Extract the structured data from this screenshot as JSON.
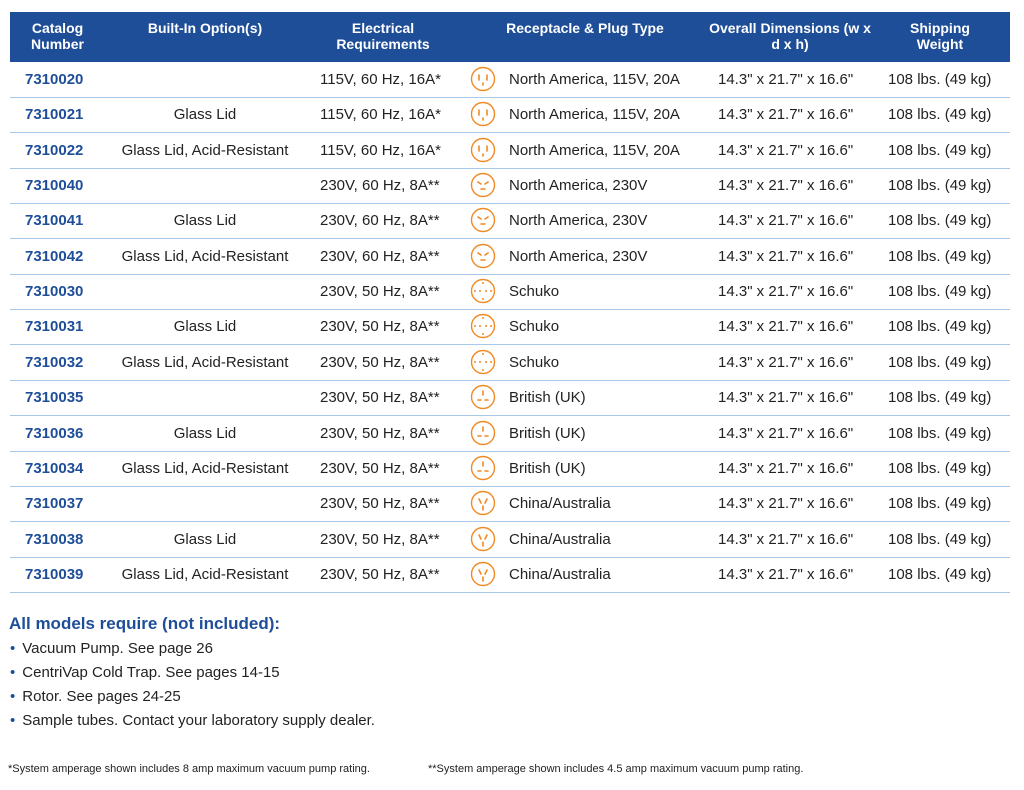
{
  "table": {
    "headers": [
      "Catalog Number",
      "Built-In Option(s)",
      "Electrical Requirements",
      "Receptacle & Plug Type",
      "Overall Dimensions (w x d x h)",
      "Shipping Weight"
    ],
    "rows": [
      [
        "7310020",
        null,
        "115V, 60 Hz, 16A*",
        "North America, 115V, 20A",
        "14.3\" x 21.7\" x 16.6\"",
        "108 lbs. (49 kg)"
      ],
      [
        "7310021",
        "Glass Lid",
        "115V, 60 Hz, 16A*",
        "North America, 115V, 20A",
        "14.3\" x 21.7\" x 16.6\"",
        "108 lbs. (49 kg)"
      ],
      [
        "7310022",
        "Glass Lid, Acid-Resistant",
        "115V, 60 Hz, 16A*",
        "North America, 115V, 20A",
        "14.3\" x 21.7\" x 16.6\"",
        "108 lbs. (49 kg)"
      ],
      [
        "7310040",
        null,
        "230V, 60 Hz, 8A**",
        "North America, 230V",
        "14.3\" x 21.7\" x 16.6\"",
        "108 lbs. (49 kg)"
      ],
      [
        "7310041",
        "Glass Lid",
        "230V, 60 Hz, 8A**",
        "North America, 230V",
        "14.3\" x 21.7\" x 16.6\"",
        "108 lbs. (49 kg)"
      ],
      [
        "7310042",
        "Glass Lid, Acid-Resistant",
        "230V, 60 Hz, 8A**",
        "North America, 230V",
        "14.3\" x 21.7\" x 16.6\"",
        "108 lbs. (49 kg)"
      ],
      [
        "7310030",
        null,
        "230V, 50 Hz, 8A**",
        "Schuko",
        "14.3\" x 21.7\" x 16.6\"",
        "108 lbs. (49 kg)"
      ],
      [
        "7310031",
        "Glass Lid",
        "230V, 50 Hz, 8A**",
        "Schuko",
        "14.3\" x 21.7\" x 16.6\"",
        "108 lbs. (49 kg)"
      ],
      [
        "7310032",
        "Glass Lid, Acid-Resistant",
        "230V, 50 Hz, 8A**",
        "Schuko",
        "14.3\" x 21.7\" x 16.6\"",
        "108 lbs. (49 kg)"
      ],
      [
        "7310035",
        null,
        "230V, 50 Hz, 8A**",
        "British (UK)",
        "14.3\" x 21.7\" x 16.6\"",
        "108 lbs. (49 kg)"
      ],
      [
        "7310036",
        "Glass Lid",
        "230V, 50 Hz, 8A**",
        "British (UK)",
        "14.3\" x 21.7\" x 16.6\"",
        "108 lbs. (49 kg)"
      ],
      [
        "7310034",
        "Glass Lid, Acid-Resistant",
        "230V, 50 Hz, 8A**",
        "British (UK)",
        "14.3\" x 21.7\" x 16.6\"",
        "108 lbs. (49 kg)"
      ],
      [
        "7310037",
        null,
        "230V, 50 Hz, 8A**",
        "China/Australia",
        "14.3\" x 21.7\" x 16.6\"",
        "108 lbs. (49 kg)"
      ],
      [
        "7310038",
        "Glass Lid",
        "230V, 50 Hz, 8A**",
        "China/Australia",
        "14.3\" x 21.7\" x 16.6\"",
        "108 lbs. (49 kg)"
      ],
      [
        "7310039",
        "Glass Lid, Acid-Resistant",
        "230V, 50 Hz, 8A**",
        "China/Australia",
        "14.3\" x 21.7\" x 16.6\"",
        "108 lbs. (49 kg)"
      ]
    ]
  },
  "requirements": {
    "title": "All models require (not included):",
    "items": [
      "Vacuum Pump. See page 26",
      "CentriVap Cold Trap. See pages 14-15",
      "Rotor. See pages 24-25",
      "Sample tubes. Contact your laboratory supply dealer."
    ]
  },
  "footnotes": [
    "*System amperage shown includes 8 amp maximum vacuum pump rating.",
    "**System amperage shown includes 4.5 amp maximum vacuum pump rating."
  ]
}
